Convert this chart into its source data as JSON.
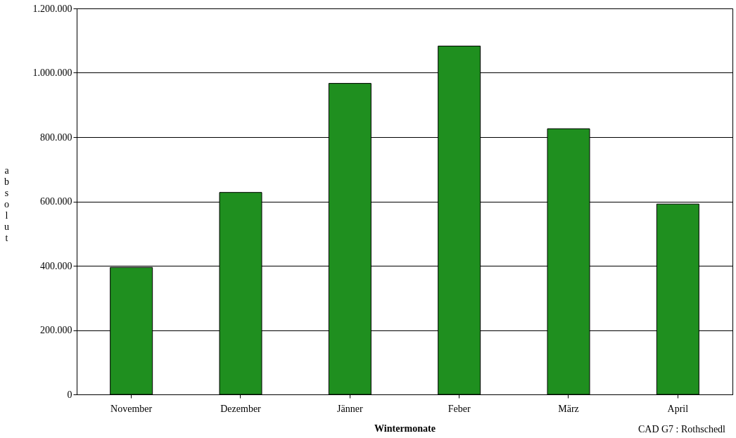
{
  "chart_data": {
    "type": "bar",
    "xlabel": "Wintermonate",
    "ylabel": "absolut",
    "categories": [
      "November",
      "Dezember",
      "Jänner",
      "Feber",
      "März",
      "April"
    ],
    "values": [
      395000,
      628000,
      967000,
      1083000,
      826000,
      592000
    ],
    "color": "#1f8f1f",
    "ylim": [
      0,
      1200000
    ],
    "yticks": [
      {
        "value": 0,
        "label": "0"
      },
      {
        "value": 200000,
        "label": "200.000"
      },
      {
        "value": 400000,
        "label": "400.000"
      },
      {
        "value": 600000,
        "label": "600.000"
      },
      {
        "value": 800000,
        "label": "800.000"
      },
      {
        "value": 1000000,
        "label": "1.000.000"
      },
      {
        "value": 1200000,
        "label": "1.200.000"
      }
    ],
    "grid": "y",
    "annotations": [
      "CAD G7 : Rothschedl"
    ]
  }
}
